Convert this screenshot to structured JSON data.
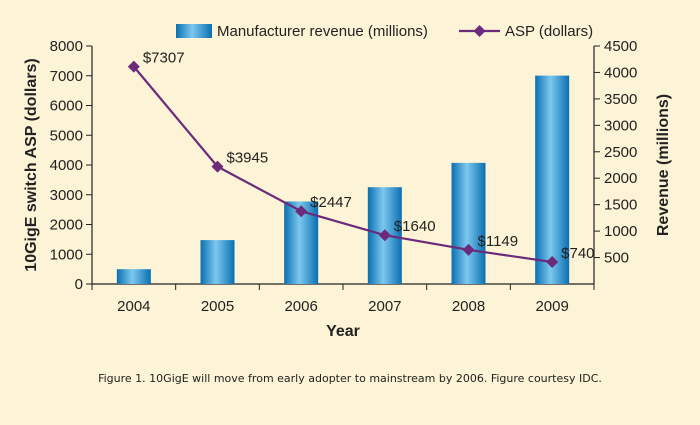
{
  "caption": "Figure 1. 10GigE will move from early adopter to mainstream by 2006. Figure courtesy IDC.",
  "colors": {
    "background": "#fdf3d6",
    "bar_light": "#7cc8ef",
    "bar_dark": "#0a6fb0",
    "line": "#6b2a7a",
    "axis": "#222222"
  },
  "chart_data": {
    "type": "bar+line",
    "categories": [
      "2004",
      "2005",
      "2006",
      "2007",
      "2008",
      "2009"
    ],
    "xlabel": "Year",
    "ylabel_left": "10GigE switch ASP (dollars)",
    "ylabel_right": "Revenue (millions)",
    "ylim_left": [
      0,
      8000
    ],
    "yticks_left": [
      0,
      1000,
      2000,
      3000,
      4000,
      5000,
      6000,
      7000,
      8000
    ],
    "ylim_right": [
      0,
      4500
    ],
    "yticks_right": [
      500,
      1000,
      1500,
      2000,
      2500,
      3000,
      3500,
      4000,
      4500
    ],
    "legend_position": "top",
    "series": [
      {
        "name": "Manufacturer revenue (millions)",
        "type": "bar",
        "axis": "right",
        "values": [
          280,
          830,
          1560,
          1830,
          2290,
          3940
        ]
      },
      {
        "name": "ASP (dollars)",
        "type": "line",
        "axis": "left",
        "marker": "diamond",
        "values": [
          7307,
          3945,
          2447,
          1640,
          1149,
          740
        ],
        "labels": [
          "$7307",
          "$3945",
          "$2447",
          "$1640",
          "$1149",
          "$740"
        ]
      }
    ],
    "grid": false
  }
}
